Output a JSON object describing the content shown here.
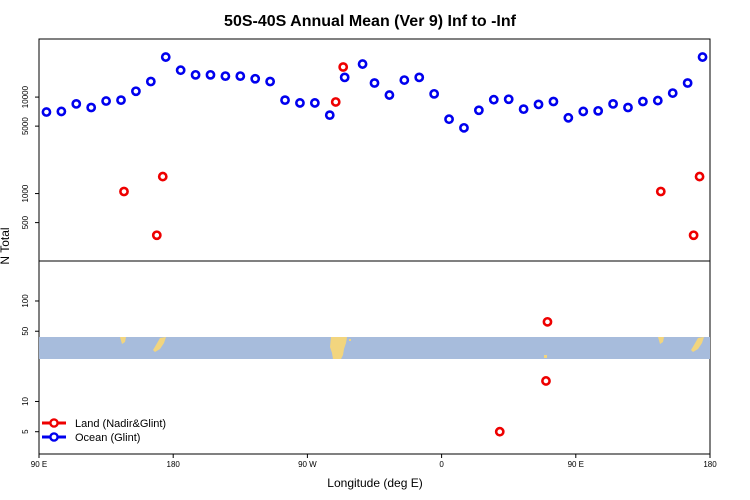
{
  "chart_data": {
    "type": "scatter",
    "title": "50S-40S Annual Mean (Ver 9)   Inf to -Inf",
    "xlabel": "Longitude (deg E)",
    "ylabel": "N Total",
    "x_ticks": [
      {
        "label": "90 E",
        "value": 0
      },
      {
        "label": "180",
        "value": 90
      },
      {
        "label": "90 W",
        "value": 180
      },
      {
        "label": "0",
        "value": 270
      },
      {
        "label": "90 E",
        "value": 360
      },
      {
        "label": "180",
        "value": 450
      }
    ],
    "xlim": [
      0,
      450
    ],
    "upper_panel": {
      "scale": "log",
      "ylim": [
        200,
        40000
      ],
      "y_ticks": [
        500,
        1000,
        5000,
        10000
      ],
      "series": [
        {
          "name": "Ocean (Glint)",
          "color": "#0000ee",
          "x": [
            5,
            15,
            25,
            35,
            45,
            55,
            65,
            75,
            85,
            95,
            105,
            115,
            125,
            135,
            145,
            155,
            165,
            175,
            185,
            195,
            205,
            217,
            225,
            235,
            245,
            255,
            265,
            275,
            285,
            295,
            305,
            315,
            325,
            335,
            345,
            355,
            365,
            375,
            385,
            395,
            405,
            415,
            425,
            435,
            445
          ],
          "y": [
            7000,
            7100,
            8500,
            7800,
            9100,
            9300,
            11500,
            14500,
            26000,
            19000,
            17000,
            17000,
            16500,
            16500,
            15500,
            14500,
            9300,
            8700,
            8700,
            6500,
            16000,
            22000,
            14000,
            10500,
            15000,
            16000,
            10800,
            5900,
            4800,
            7300,
            9400,
            9500,
            7500,
            8400,
            9000,
            6100,
            7100,
            7200,
            8500,
            7800,
            9000,
            9200,
            11000,
            14000,
            26000
          ]
        },
        {
          "name": "Land (Nadir&Glint)",
          "color": "#ee0000",
          "x": [
            57,
            79,
            83,
            199,
            204,
            417,
            439,
            443
          ],
          "y": [
            1050,
            370,
            1500,
            8900,
            20500,
            1050,
            370,
            1500
          ]
        }
      ]
    },
    "lower_panel": {
      "scale": "log",
      "ylim": [
        3,
        250
      ],
      "y_ticks": [
        5,
        10,
        50,
        100
      ],
      "series": [
        {
          "name": "Land (Nadir&Glint)",
          "color": "#ee0000",
          "x": [
            309,
            340,
            341
          ],
          "y": [
            5,
            16,
            62
          ]
        }
      ]
    },
    "legend": {
      "placement": "bottom-left",
      "entries": [
        {
          "label": "Land (Nadir&Glint)",
          "color": "#ee0000"
        },
        {
          "label": "Ocean (Glint)",
          "color": "#0000ee"
        }
      ]
    },
    "map_strip_colors": {
      "ocean": "#a7bcdc",
      "land": "#f2d57e"
    }
  }
}
